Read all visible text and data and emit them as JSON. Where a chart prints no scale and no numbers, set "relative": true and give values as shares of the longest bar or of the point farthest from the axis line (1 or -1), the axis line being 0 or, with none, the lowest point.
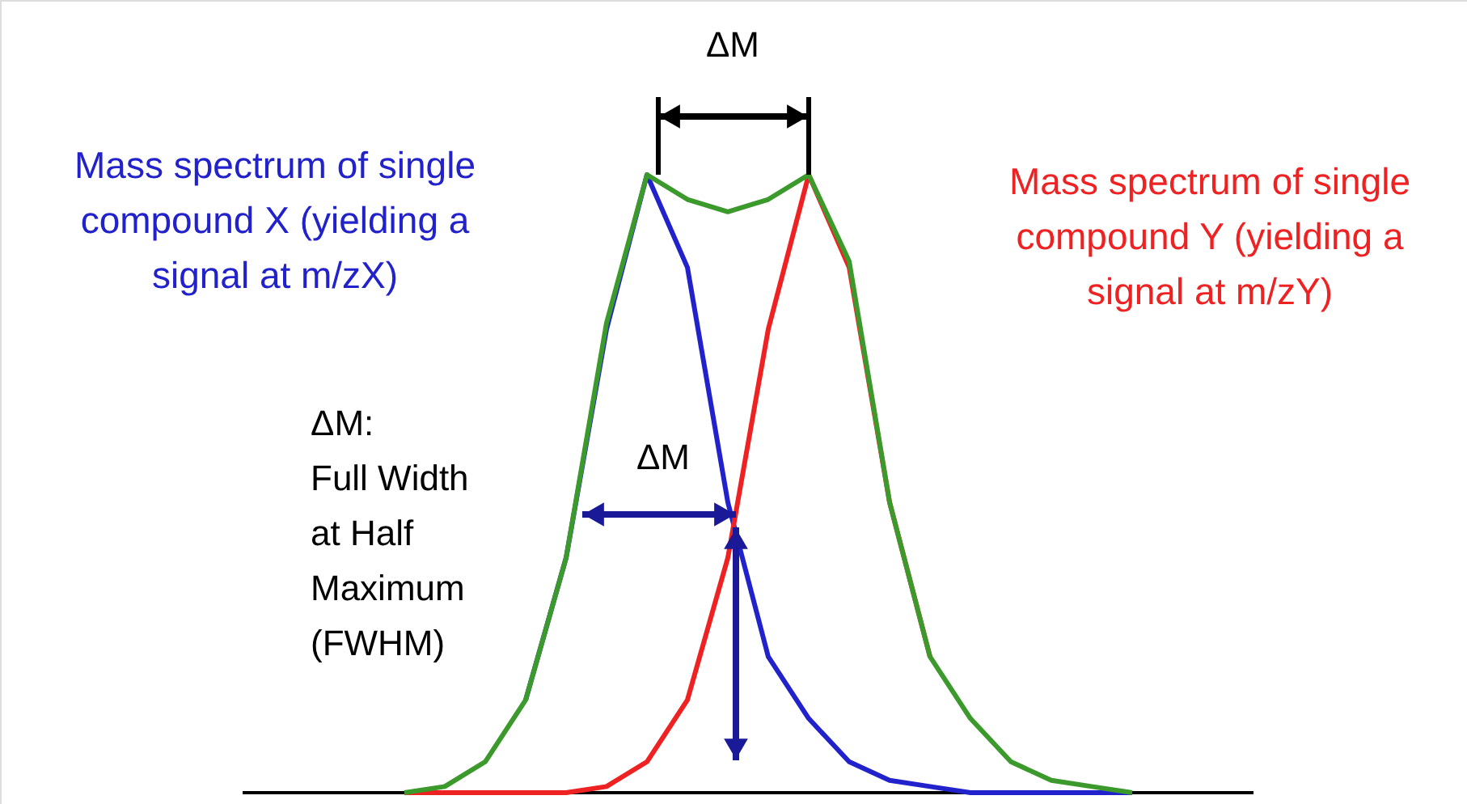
{
  "chart_data": {
    "type": "line",
    "relative": true,
    "marker": "none",
    "line_style": "solid",
    "categories": [
      null,
      null,
      null,
      null,
      null,
      null,
      null,
      null,
      null,
      null,
      null,
      null,
      null,
      null,
      null,
      null,
      null,
      null,
      null
    ],
    "series": [
      {
        "name": "Mass spectrum of single compound X (yielding a signal at m/zX)",
        "color": "#2222cc",
        "values": [
          null,
          null,
          null,
          0.15,
          0.38,
          0.75,
          1.0,
          0.85,
          0.47,
          0.22,
          0.12,
          0.05,
          0.02,
          0.01,
          0,
          0,
          0,
          0,
          0
        ]
      },
      {
        "name": "Mass spectrum of single compound Y (yielding a signal at m/zY)",
        "color": "#ee2222",
        "values": [
          0,
          0,
          0,
          0,
          0,
          0.01,
          0.05,
          0.15,
          0.38,
          0.75,
          1.0,
          0.85,
          0.47,
          0.22,
          null,
          null,
          null,
          null,
          null
        ]
      },
      {
        "color": "#3c9a2c",
        "values": [
          0,
          0.01,
          0.05,
          0.15,
          0.38,
          0.76,
          1.0,
          0.96,
          0.94,
          0.96,
          1.0,
          0.86,
          0.47,
          0.22,
          0.12,
          0.05,
          0.02,
          0.01,
          0
        ]
      }
    ],
    "annotations": [
      "ΔM",
      "ΔM",
      "ΔM:\nFull Width\nat Half\nMaximum\n(FWHM)"
    ]
  }
}
